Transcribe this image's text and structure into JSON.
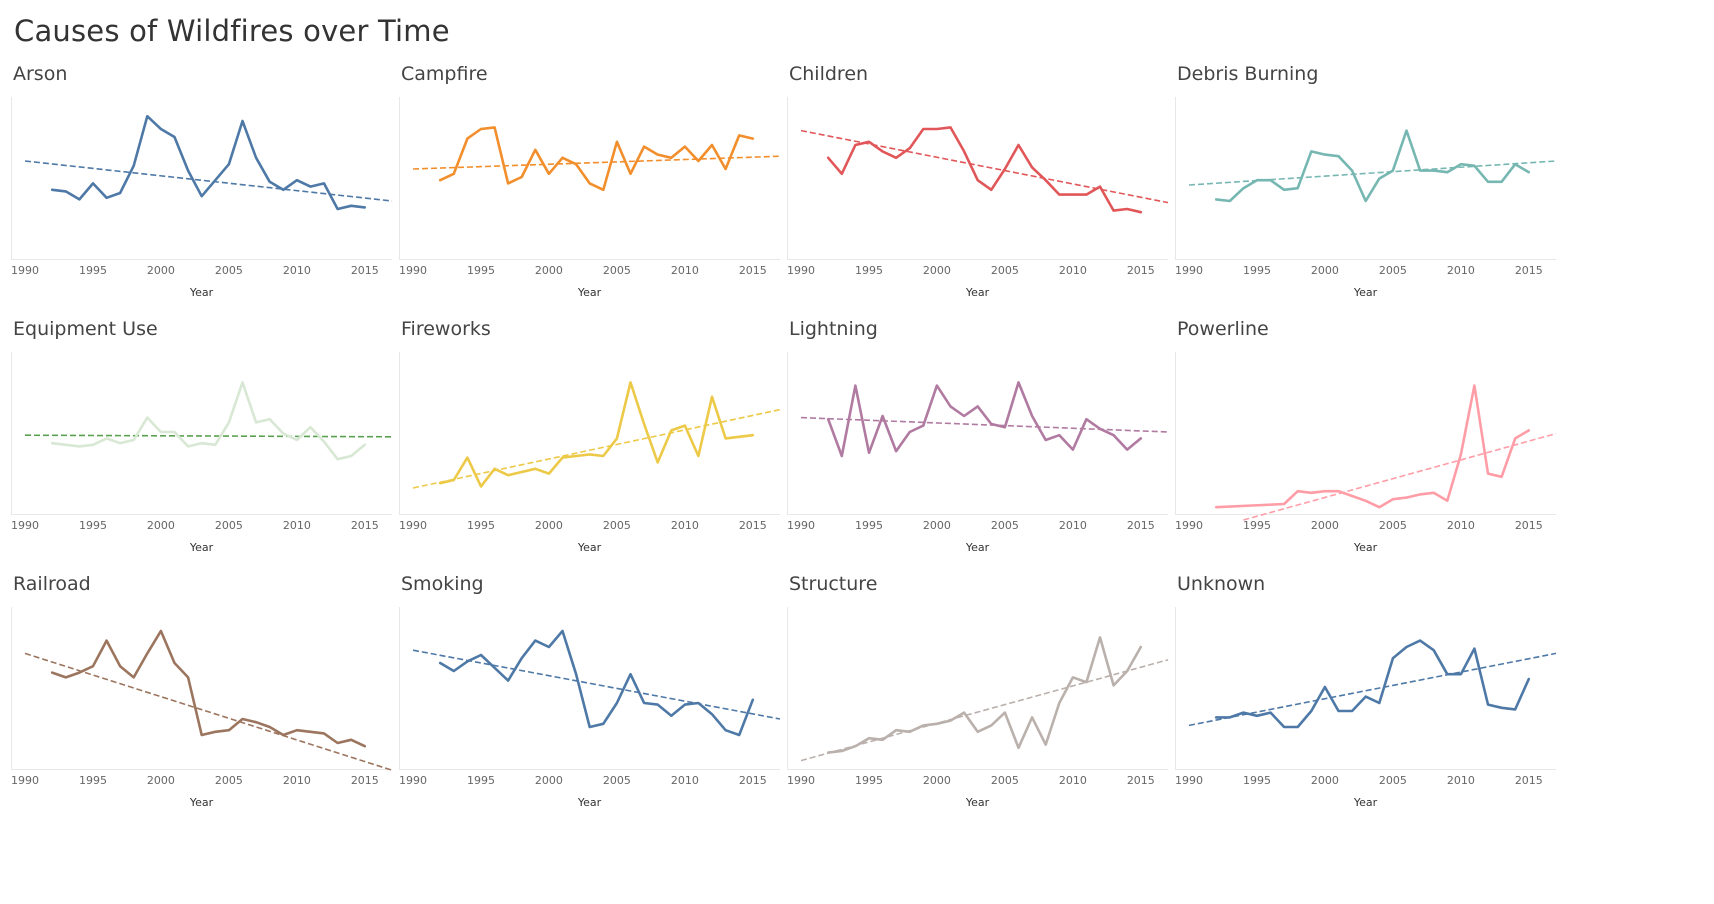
{
  "page": {
    "title": "Causes of Wildfires over Time"
  },
  "chart_data": [
    {
      "type": "line",
      "title": "Arson",
      "xlabel": "Year",
      "ylabel": "",
      "color": "#4e79a7",
      "x": [
        1992,
        1993,
        1994,
        1995,
        1996,
        1997,
        1998,
        1999,
        2000,
        2001,
        2002,
        2003,
        2004,
        2005,
        2006,
        2007,
        2008,
        2009,
        2010,
        2011,
        2012,
        2013,
        2014,
        2015
      ],
      "values": [
        42,
        41,
        36,
        46,
        37,
        40,
        57,
        88,
        80,
        75,
        54,
        38,
        48,
        58,
        85,
        62,
        47,
        42,
        48,
        44,
        46,
        30,
        32,
        31
      ],
      "trend": {
        "start": [
          1990,
          60
        ],
        "end": [
          2017,
          35
        ]
      },
      "xticks": [
        1990,
        1995,
        2000,
        2005,
        2010,
        2015
      ],
      "xlim": [
        1990,
        2017
      ],
      "ylim": [
        0,
        100
      ],
      "grid": false
    },
    {
      "type": "line",
      "title": "Campfire",
      "xlabel": "Year",
      "ylabel": "",
      "color": "#f28e2b",
      "x": [
        1992,
        1993,
        1994,
        1995,
        1996,
        1997,
        1998,
        1999,
        2000,
        2001,
        2002,
        2003,
        2004,
        2005,
        2006,
        2007,
        2008,
        2009,
        2010,
        2011,
        2012,
        2013,
        2014,
        2015
      ],
      "values": [
        48,
        52,
        74,
        80,
        81,
        46,
        50,
        67,
        52,
        62,
        58,
        46,
        42,
        72,
        52,
        69,
        64,
        62,
        69,
        60,
        70,
        55,
        76,
        74
      ],
      "trend": {
        "start": [
          1990,
          55
        ],
        "end": [
          2017,
          63
        ]
      },
      "xticks": [
        1990,
        1995,
        2000,
        2005,
        2010,
        2015
      ],
      "xlim": [
        1990,
        2017
      ],
      "ylim": [
        0,
        100
      ],
      "grid": false
    },
    {
      "type": "line",
      "title": "Children",
      "xlabel": "Year",
      "ylabel": "",
      "color": "#e15759",
      "x": [
        1992,
        1993,
        1994,
        1995,
        1996,
        1997,
        1998,
        1999,
        2000,
        2001,
        2002,
        2003,
        2004,
        2005,
        2006,
        2007,
        2008,
        2009,
        2010,
        2011,
        2012,
        2013,
        2014,
        2015
      ],
      "values": [
        62,
        52,
        70,
        72,
        66,
        62,
        68,
        80,
        80,
        81,
        66,
        48,
        42,
        55,
        70,
        56,
        48,
        39,
        39,
        39,
        44,
        29,
        30,
        28
      ],
      "trend": {
        "start": [
          1990,
          79
        ],
        "end": [
          2017,
          34
        ]
      },
      "xticks": [
        1990,
        1995,
        2000,
        2005,
        2010,
        2015
      ],
      "xlim": [
        1990,
        2017
      ],
      "ylim": [
        0,
        100
      ],
      "grid": false
    },
    {
      "type": "line",
      "title": "Debris Burning",
      "xlabel": "Year",
      "ylabel": "",
      "color": "#76b7b2",
      "x": [
        1992,
        1993,
        1994,
        1995,
        1996,
        1997,
        1998,
        1999,
        2000,
        2001,
        2002,
        2003,
        2004,
        2005,
        2006,
        2007,
        2008,
        2009,
        2010,
        2011,
        2012,
        2013,
        2014,
        2015
      ],
      "values": [
        36,
        35,
        43,
        48,
        48,
        42,
        43,
        66,
        64,
        63,
        54,
        35,
        49,
        54,
        79,
        54,
        54,
        53,
        58,
        57,
        47,
        47,
        58,
        53
      ],
      "trend": {
        "start": [
          1990,
          45
        ],
        "end": [
          2017,
          60
        ]
      },
      "xticks": [
        1990,
        1995,
        2000,
        2005,
        2010,
        2015
      ],
      "xlim": [
        1990,
        2017
      ],
      "ylim": [
        0,
        100
      ],
      "grid": false
    },
    {
      "type": "line",
      "title": "Equipment Use",
      "xlabel": "Year",
      "ylabel": "",
      "color": "#d8e8d4",
      "trend_color": "#59a14f",
      "x": [
        1992,
        1993,
        1994,
        1995,
        1996,
        1997,
        1998,
        1999,
        2000,
        2001,
        2002,
        2003,
        2004,
        2005,
        2006,
        2007,
        2008,
        2009,
        2010,
        2011,
        2012,
        2013,
        2014,
        2015
      ],
      "values": [
        43,
        42,
        41,
        42,
        46,
        43,
        45,
        59,
        50,
        50,
        41,
        43,
        42,
        56,
        81,
        56,
        58,
        49,
        45,
        53,
        44,
        33,
        35,
        42
      ],
      "trend": {
        "start": [
          1990,
          48
        ],
        "end": [
          2017,
          47
        ]
      },
      "xticks": [
        1990,
        1995,
        2000,
        2005,
        2010,
        2015
      ],
      "xlim": [
        1990,
        2017
      ],
      "ylim": [
        0,
        100
      ],
      "grid": false
    },
    {
      "type": "line",
      "title": "Fireworks",
      "xlabel": "Year",
      "ylabel": "",
      "color": "#edc948",
      "x": [
        1992,
        1993,
        1994,
        1995,
        1996,
        1997,
        1998,
        1999,
        2000,
        2001,
        2002,
        2003,
        2004,
        2005,
        2006,
        2007,
        2008,
        2009,
        2010,
        2011,
        2012,
        2013,
        2014,
        2015
      ],
      "values": [
        18,
        20,
        34,
        16,
        27,
        23,
        25,
        27,
        24,
        34,
        35,
        36,
        35,
        46,
        81,
        55,
        31,
        51,
        54,
        35,
        72,
        46,
        47,
        48
      ],
      "trend": {
        "start": [
          1990,
          15
        ],
        "end": [
          2017,
          64
        ]
      },
      "xticks": [
        1990,
        1995,
        2000,
        2005,
        2010,
        2015
      ],
      "xlim": [
        1990,
        2017
      ],
      "ylim": [
        0,
        100
      ],
      "grid": false
    },
    {
      "type": "line",
      "title": "Lightning",
      "xlabel": "Year",
      "ylabel": "",
      "color": "#b07aa1",
      "x": [
        1992,
        1993,
        1994,
        1995,
        1996,
        1997,
        1998,
        1999,
        2000,
        2001,
        2002,
        2003,
        2004,
        2005,
        2006,
        2007,
        2008,
        2009,
        2010,
        2011,
        2012,
        2013,
        2014,
        2015
      ],
      "values": [
        58,
        35,
        79,
        37,
        60,
        38,
        50,
        54,
        79,
        66,
        60,
        66,
        55,
        53,
        81,
        60,
        45,
        48,
        39,
        58,
        52,
        48,
        39,
        46
      ],
      "trend": {
        "start": [
          1990,
          59
        ],
        "end": [
          2017,
          50
        ]
      },
      "xticks": [
        1990,
        1995,
        2000,
        2005,
        2010,
        2015
      ],
      "xlim": [
        1990,
        2017
      ],
      "ylim": [
        0,
        100
      ],
      "grid": false
    },
    {
      "type": "line",
      "title": "Powerline",
      "xlabel": "Year",
      "ylabel": "",
      "color": "#ff9da7",
      "x": [
        1992,
        1997,
        1998,
        1999,
        2000,
        2001,
        2002,
        2003,
        2004,
        2005,
        2006,
        2007,
        2008,
        2009,
        2010,
        2011,
        2012,
        2013,
        2014,
        2015
      ],
      "values": [
        3,
        5,
        13,
        12,
        13,
        13,
        10,
        7,
        3,
        8,
        9,
        11,
        12,
        7,
        36,
        79,
        24,
        22,
        46,
        51
      ],
      "trend": {
        "start": [
          1994,
          -5
        ],
        "end": [
          2017,
          49
        ]
      },
      "xticks": [
        1990,
        1995,
        2000,
        2005,
        2010,
        2015
      ],
      "xlim": [
        1990,
        2017
      ],
      "ylim": [
        0,
        100
      ],
      "grid": false
    },
    {
      "type": "line",
      "title": "Railroad",
      "xlabel": "Year",
      "ylabel": "",
      "color": "#9c755f",
      "x": [
        1992,
        1993,
        1994,
        1995,
        1996,
        1997,
        1998,
        1999,
        2000,
        2001,
        2002,
        2003,
        2004,
        2005,
        2006,
        2007,
        2008,
        2009,
        2010,
        2011,
        2012,
        2013,
        2014,
        2015
      ],
      "values": [
        59,
        56,
        59,
        63,
        79,
        63,
        56,
        71,
        85,
        65,
        56,
        20,
        22,
        23,
        30,
        28,
        25,
        20,
        23,
        22,
        21,
        15,
        17,
        13
      ],
      "trend": {
        "start": [
          1990,
          71
        ],
        "end": [
          2017,
          -2
        ]
      },
      "xticks": [
        1990,
        1995,
        2000,
        2005,
        2010,
        2015
      ],
      "xlim": [
        1990,
        2017
      ],
      "ylim": [
        0,
        100
      ],
      "grid": false
    },
    {
      "type": "line",
      "title": "Smoking",
      "xlabel": "Year",
      "ylabel": "",
      "color": "#4e79a7",
      "x": [
        1992,
        1993,
        1994,
        1995,
        1996,
        1997,
        1998,
        1999,
        2000,
        2001,
        2002,
        2003,
        2004,
        2005,
        2006,
        2007,
        2008,
        2009,
        2010,
        2011,
        2012,
        2013,
        2014,
        2015
      ],
      "values": [
        65,
        60,
        66,
        70,
        62,
        54,
        68,
        79,
        75,
        85,
        58,
        25,
        27,
        40,
        58,
        40,
        39,
        32,
        39,
        40,
        33,
        23,
        20,
        42
      ],
      "trend": {
        "start": [
          1990,
          73
        ],
        "end": [
          2017,
          30
        ]
      },
      "xticks": [
        1990,
        1995,
        2000,
        2005,
        2010,
        2015
      ],
      "xlim": [
        1990,
        2017
      ],
      "ylim": [
        0,
        100
      ],
      "grid": false
    },
    {
      "type": "line",
      "title": "Structure",
      "xlabel": "Year",
      "ylabel": "",
      "color": "#bab0ac",
      "x": [
        1992,
        1993,
        1994,
        1995,
        1996,
        1997,
        1998,
        1999,
        2000,
        2001,
        2002,
        2003,
        2004,
        2005,
        2006,
        2007,
        2008,
        2009,
        2010,
        2011,
        2012,
        2013,
        2014,
        2015
      ],
      "values": [
        9,
        10,
        13,
        18,
        17,
        23,
        22,
        26,
        27,
        29,
        34,
        22,
        26,
        34,
        12,
        31,
        14,
        40,
        56,
        53,
        81,
        51,
        60,
        75
      ],
      "trend": {
        "start": [
          1990,
          4
        ],
        "end": [
          2017,
          67
        ]
      },
      "xticks": [
        1990,
        1995,
        2000,
        2005,
        2010,
        2015
      ],
      "xlim": [
        1990,
        2017
      ],
      "ylim": [
        0,
        100
      ],
      "grid": false
    },
    {
      "type": "line",
      "title": "Unknown",
      "xlabel": "Year",
      "ylabel": "",
      "color": "#4e79a7",
      "x": [
        1992,
        1993,
        1994,
        1995,
        1996,
        1997,
        1998,
        1999,
        2000,
        2001,
        2002,
        2003,
        2004,
        2005,
        2006,
        2007,
        2008,
        2009,
        2010,
        2011,
        2012,
        2013,
        2014,
        2015
      ],
      "values": [
        31,
        31,
        34,
        32,
        34,
        25,
        25,
        35,
        50,
        35,
        35,
        44,
        40,
        68,
        75,
        79,
        73,
        58,
        58,
        74,
        39,
        37,
        36,
        55
      ],
      "trend": {
        "start": [
          1990,
          26
        ],
        "end": [
          2017,
          71
        ]
      },
      "xticks": [
        1990,
        1995,
        2000,
        2005,
        2010,
        2015
      ],
      "xlim": [
        1990,
        2017
      ],
      "ylim": [
        0,
        100
      ],
      "grid": false
    }
  ]
}
